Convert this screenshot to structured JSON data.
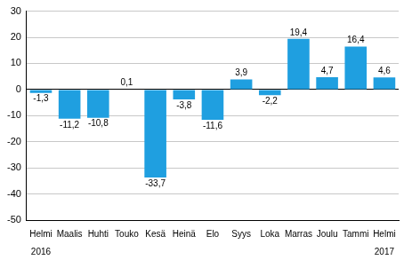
{
  "chart_data": {
    "type": "bar",
    "categories": [
      [
        "Helmi",
        "2016"
      ],
      [
        "Maalis"
      ],
      [
        "Huhti"
      ],
      [
        "Touko"
      ],
      [
        "Kesä"
      ],
      [
        "Heinä"
      ],
      [
        "Elo"
      ],
      [
        "Syys"
      ],
      [
        "Loka"
      ],
      [
        "Marras"
      ],
      [
        "Joulu"
      ],
      [
        "Tammi"
      ],
      [
        "Helmi",
        "2017"
      ]
    ],
    "values": [
      -1.3,
      -11.2,
      -10.8,
      0.1,
      -33.7,
      -3.8,
      -11.6,
      3.9,
      -2.2,
      19.4,
      4.7,
      16.4,
      4.6
    ],
    "value_labels": [
      "-1,3",
      "-11,2",
      "-10,8",
      "0,1",
      "-33,7",
      "-3,8",
      "-11,6",
      "3,9",
      "-2,2",
      "19,4",
      "4,7",
      "16,4",
      "4,6"
    ],
    "data_labels": true,
    "color": "#1f9fe0",
    "ylim": [
      -50,
      30
    ],
    "yticks": [
      -50,
      -40,
      -30,
      -20,
      -10,
      0,
      10,
      20,
      30
    ],
    "grid": true
  }
}
